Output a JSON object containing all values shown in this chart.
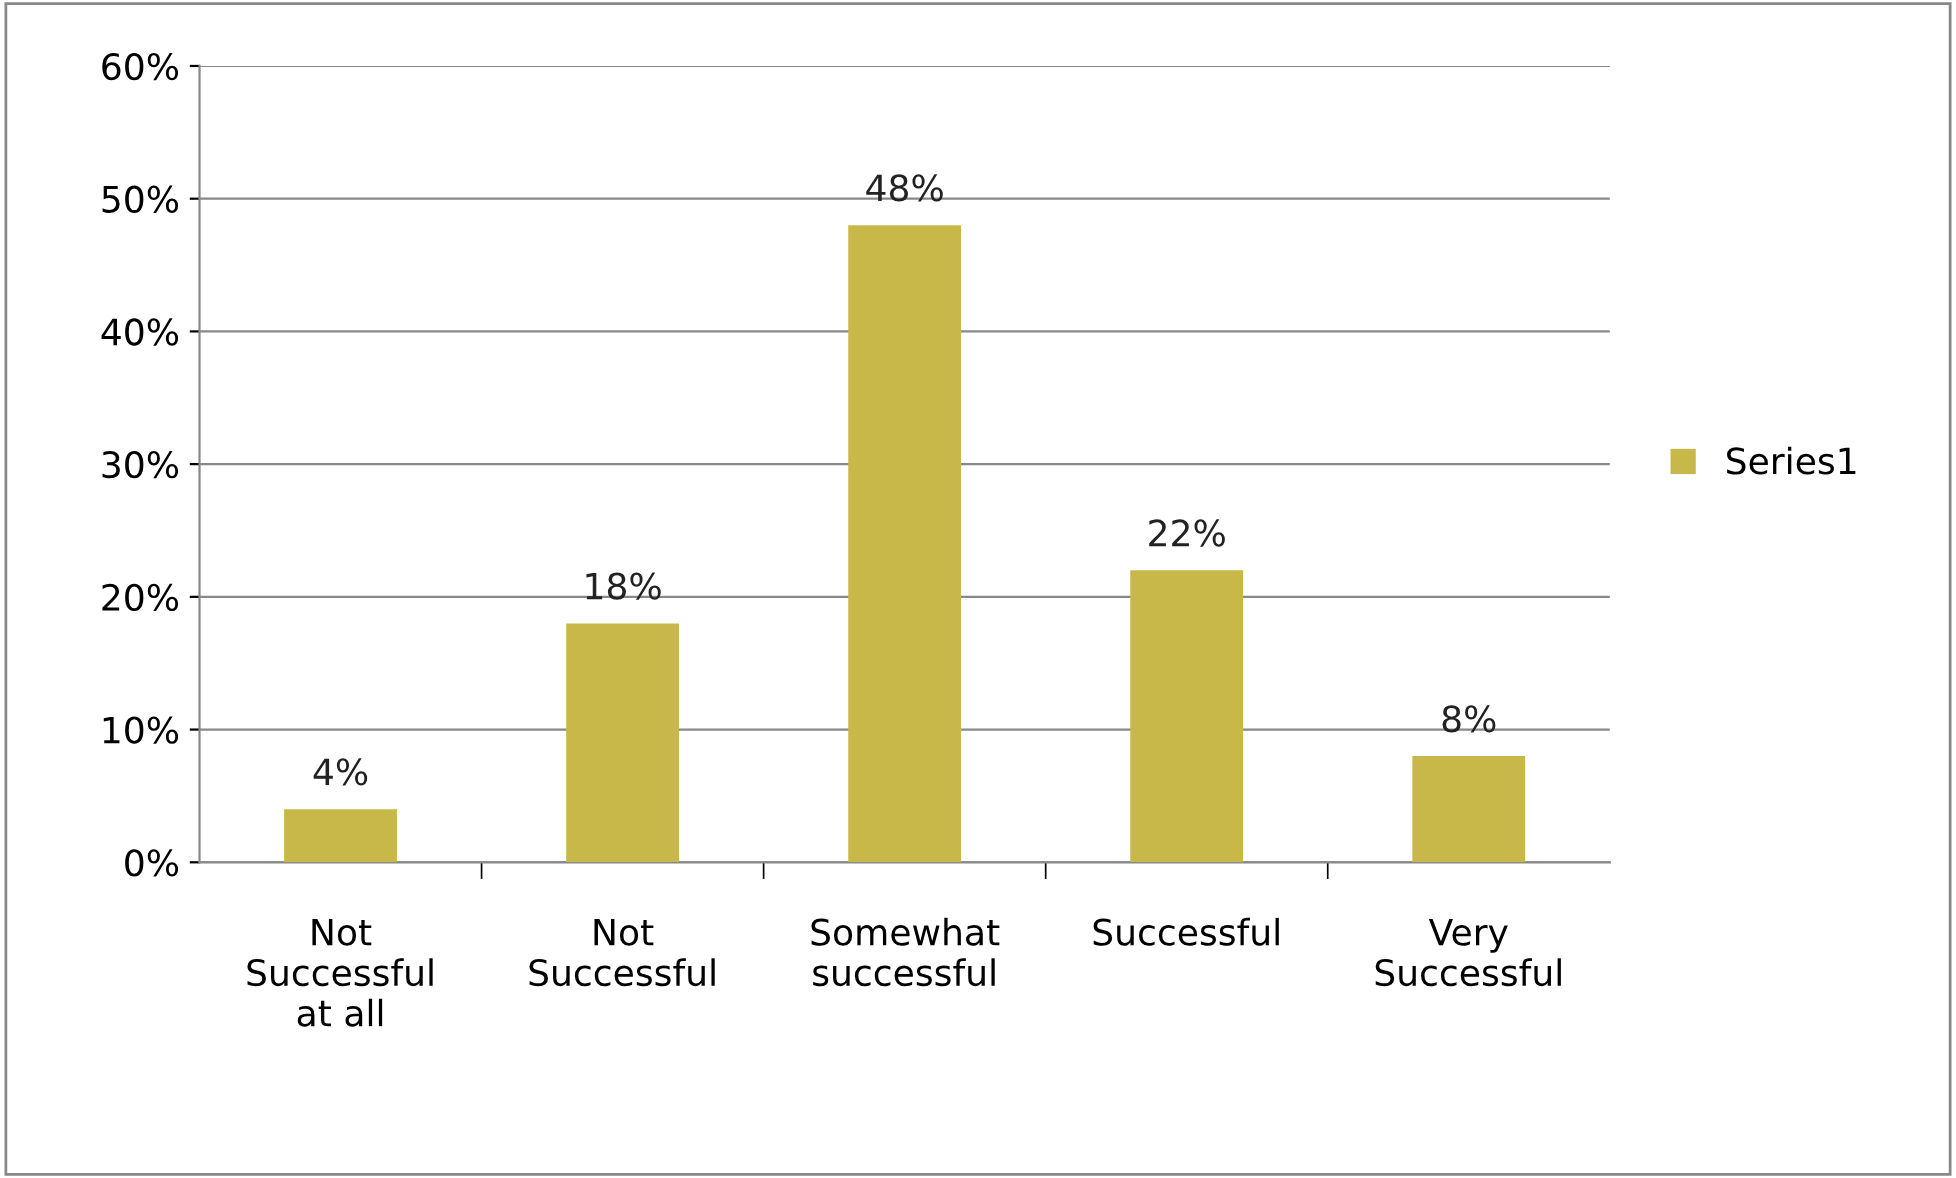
{
  "chart_data": {
    "type": "bar",
    "categories": [
      "Not\nSuccessful\nat all",
      "Not\nSuccessful",
      "Somewhat\nsuccessful",
      "Successful",
      "Very\nSuccessful"
    ],
    "series": [
      {
        "name": "Series1",
        "color": "#c8b84a",
        "values": [
          4,
          18,
          48,
          22,
          8
        ],
        "value_labels": [
          "4%",
          "18%",
          "48%",
          "22%",
          "8%"
        ]
      }
    ],
    "ylim": [
      0,
      60
    ],
    "yticks": [
      {
        "value": 0,
        "label": "0%"
      },
      {
        "value": 10,
        "label": "10%"
      },
      {
        "value": 20,
        "label": "20%"
      },
      {
        "value": 30,
        "label": "30%"
      },
      {
        "value": 40,
        "label": "40%"
      },
      {
        "value": 50,
        "label": "50%"
      },
      {
        "value": 60,
        "label": "60%"
      }
    ],
    "grid": "y",
    "legend": "right"
  }
}
